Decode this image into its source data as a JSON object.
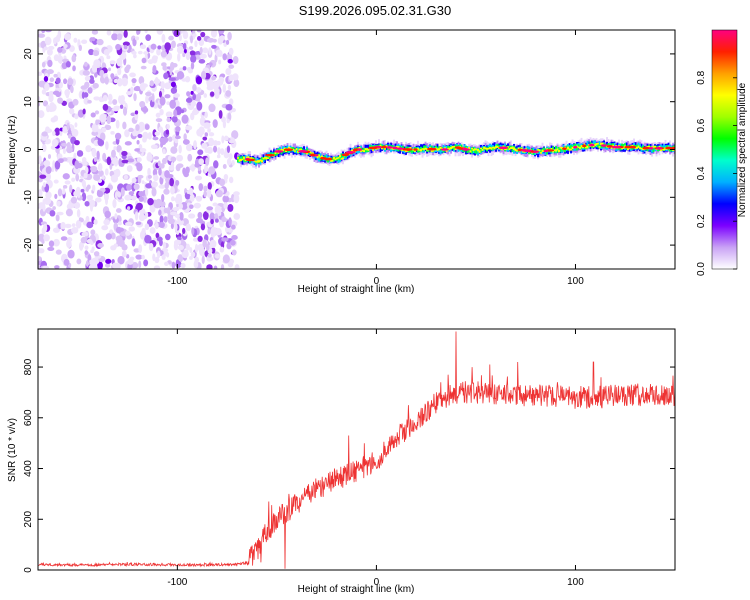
{
  "title": "S199.2026.095.02.31.G30",
  "chart_data": [
    {
      "type": "heatmap",
      "name": "spectrogram",
      "xlabel": "Height of straight line (km)",
      "ylabel": "Frequency (Hz)",
      "xlim": [
        -170,
        150
      ],
      "ylim": [
        -25,
        25
      ],
      "xticks": [
        -100,
        0,
        100
      ],
      "xtick_labels": [
        "-100",
        "0",
        "100"
      ],
      "yticks": [
        -20,
        -10,
        0,
        10,
        20
      ],
      "ytick_labels": [
        "-20",
        "-10",
        "0",
        "10",
        "20"
      ],
      "noise_region_x": [
        -170,
        -70
      ],
      "signal_track": {
        "x": [
          -70,
          -65,
          -60,
          -55,
          -50,
          -45,
          -40,
          -35,
          -30,
          -25,
          -20,
          -15,
          -10,
          -5,
          0,
          5,
          10,
          15,
          20,
          25,
          30,
          35,
          40,
          45,
          50,
          55,
          60,
          65,
          70,
          75,
          80,
          85,
          90,
          95,
          100,
          105,
          110,
          115,
          120,
          125,
          130,
          135,
          140,
          145,
          150
        ],
        "y": [
          -2.0,
          -2.0,
          -2.5,
          -1.5,
          -0.5,
          0.0,
          -0.2,
          -0.5,
          -1.5,
          -2.0,
          -2.0,
          -1.0,
          0.0,
          0.0,
          0.5,
          0.5,
          0.3,
          0.0,
          0.0,
          0.2,
          0.0,
          0.0,
          0.5,
          0.0,
          -0.3,
          0.2,
          0.5,
          0.3,
          0.0,
          -0.2,
          -0.5,
          -0.3,
          0.0,
          0.2,
          0.5,
          0.8,
          1.0,
          0.8,
          0.5,
          0.5,
          0.5,
          0.3,
          0.2,
          0.3,
          0.3
        ]
      },
      "colorbar": {
        "label": "Normalized spectral amplitude",
        "range": [
          0,
          1
        ],
        "ticks": [
          0.0,
          0.2,
          0.4,
          0.6,
          0.8
        ],
        "tick_labels": [
          "0.0",
          "0.2",
          "0.4",
          "0.6",
          "0.8"
        ],
        "colormap": [
          "#ffffff",
          "#c9a2f5",
          "#7b00ff",
          "#0000ff",
          "#00b0ff",
          "#00ffcc",
          "#00ff00",
          "#a0ff00",
          "#ffff00",
          "#ffa000",
          "#ff2000",
          "#ff0080"
        ]
      }
    },
    {
      "type": "line",
      "name": "snr",
      "xlabel": "Height of straight line (km)",
      "ylabel": "SNR (10 * v/v)",
      "xlim": [
        -170,
        150
      ],
      "ylim": [
        0,
        950
      ],
      "xticks": [
        -100,
        0,
        100
      ],
      "xtick_labels": [
        "-100",
        "0",
        "100"
      ],
      "yticks": [
        0,
        200,
        400,
        600,
        800
      ],
      "ytick_labels": [
        "0",
        "200",
        "400",
        "600",
        "800"
      ],
      "color": "#ee3333",
      "trend": {
        "x": [
          -170,
          -150,
          -120,
          -90,
          -70,
          -65,
          -60,
          -55,
          -50,
          -40,
          -30,
          -20,
          -10,
          0,
          10,
          20,
          30,
          40,
          50,
          60,
          80,
          100,
          120,
          150
        ],
        "y": [
          22,
          20,
          22,
          20,
          22,
          30,
          80,
          150,
          200,
          260,
          320,
          360,
          390,
          430,
          520,
          590,
          660,
          700,
          700,
          690,
          690,
          680,
          690,
          690
        ]
      },
      "noise_amplitude": 45,
      "spikes": [
        {
          "x": 40,
          "y": 940
        },
        {
          "x": 36,
          "y": 770
        },
        {
          "x": 48,
          "y": 800
        },
        {
          "x": 57,
          "y": 810
        },
        {
          "x": 71,
          "y": 820
        },
        {
          "x": 109,
          "y": 820
        },
        {
          "x": -14,
          "y": 530
        },
        {
          "x": -6,
          "y": 500
        },
        {
          "x": 16,
          "y": 650
        },
        {
          "x": -54,
          "y": 270
        },
        {
          "x": -44,
          "y": 300
        }
      ],
      "dips": [
        {
          "x": -46,
          "y": 5
        },
        {
          "x": -58,
          "y": 30
        }
      ]
    }
  ]
}
